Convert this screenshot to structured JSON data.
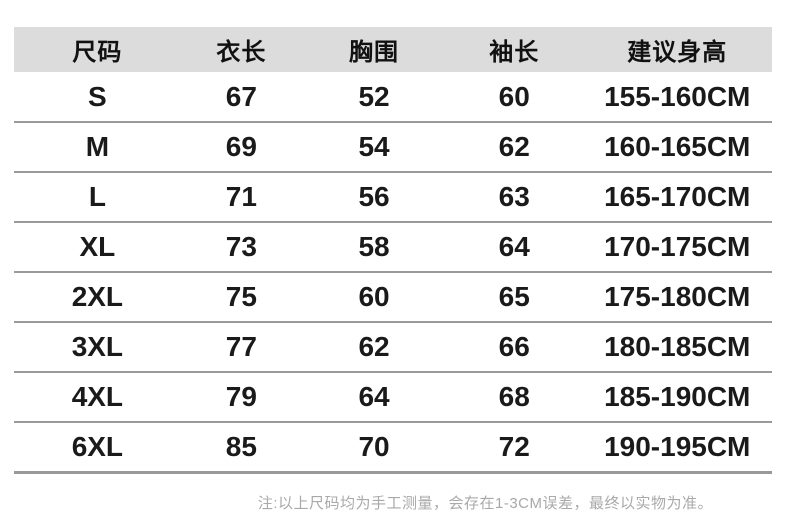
{
  "chart_data": {
    "type": "table",
    "columns": [
      "尺码",
      "衣长",
      "胸围",
      "袖长",
      "建议身高"
    ],
    "rows": [
      [
        "S",
        "67",
        "52",
        "60",
        "155-160CM"
      ],
      [
        "M",
        "69",
        "54",
        "62",
        "160-165CM"
      ],
      [
        "L",
        "71",
        "56",
        "63",
        "165-170CM"
      ],
      [
        "XL",
        "73",
        "58",
        "64",
        "170-175CM"
      ],
      [
        "2XL",
        "75",
        "60",
        "65",
        "175-180CM"
      ],
      [
        "3XL",
        "77",
        "62",
        "66",
        "180-185CM"
      ],
      [
        "4XL",
        "79",
        "64",
        "68",
        "185-190CM"
      ],
      [
        "6XL",
        "85",
        "70",
        "72",
        "190-195CM"
      ]
    ],
    "layout": {
      "header_background": "#dcdcdc",
      "separator_color": "#9a9a9a",
      "grid": "horizontal-only"
    }
  },
  "note": {
    "text": "注:以上尺码均为手工测量，会存在1-3CM误差，最终以实物为准。",
    "color": "#a9a9a9"
  }
}
